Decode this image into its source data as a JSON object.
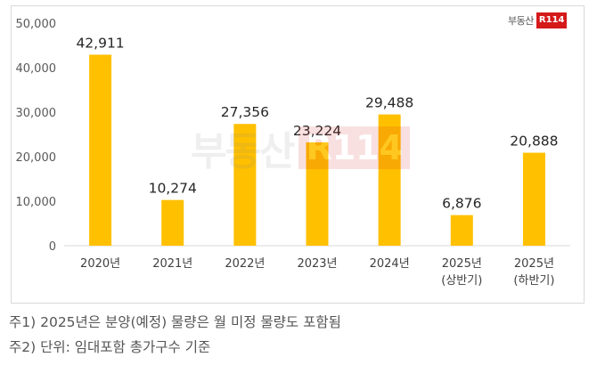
{
  "chart_data": {
    "type": "bar",
    "title": "",
    "xlabel": "",
    "ylabel": "",
    "ylim": [
      0,
      50000
    ],
    "yticks": [
      "0",
      "10,000",
      "20,000",
      "30,000",
      "40,000",
      "50,000"
    ],
    "ytick_values": [
      0,
      10000,
      20000,
      30000,
      40000,
      50000
    ],
    "categories": [
      [
        "2020년"
      ],
      [
        "2021년"
      ],
      [
        "2022년"
      ],
      [
        "2023년"
      ],
      [
        "2024년"
      ],
      [
        "2025년",
        "(상반기)"
      ],
      [
        "2025년",
        "(하반기)"
      ]
    ],
    "values": [
      42911,
      10274,
      27356,
      23224,
      29488,
      6876,
      20888
    ],
    "data_labels": [
      "42,911",
      "10,274",
      "27,356",
      "23,224",
      "29,488",
      "6,876",
      "20,888"
    ],
    "bar_color": "#FFC000",
    "grid": false
  },
  "brand": {
    "text": "부동산",
    "badge": "R114"
  },
  "watermark": {
    "text": "부동산",
    "badge": "R114"
  },
  "footnotes": [
    "주1) 2025년은 분양(예정) 물량은 월 미정 물량도 포함됨",
    "주2) 단위: 임대포함 총가구수 기준"
  ]
}
